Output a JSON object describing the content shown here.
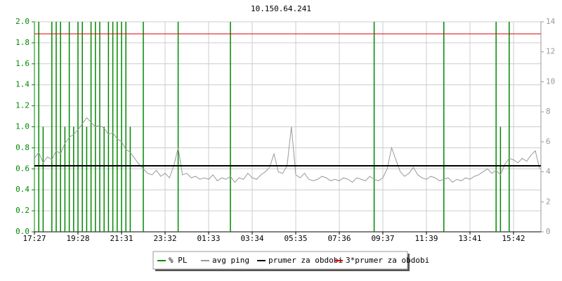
{
  "chart_data": {
    "type": "line",
    "title": "10.150.64.241",
    "categories": [
      "17:27",
      null,
      null,
      null,
      null,
      null,
      null,
      null,
      null,
      null,
      "19:28",
      null,
      null,
      null,
      null,
      null,
      null,
      null,
      null,
      null,
      "21:31",
      null,
      null,
      null,
      null,
      null,
      null,
      null,
      null,
      null,
      "23:32",
      null,
      null,
      null,
      null,
      null,
      null,
      null,
      null,
      null,
      "01:33",
      null,
      null,
      null,
      null,
      null,
      null,
      null,
      null,
      null,
      "03:34",
      null,
      null,
      null,
      null,
      null,
      null,
      null,
      null,
      null,
      "05:35",
      null,
      null,
      null,
      null,
      null,
      null,
      null,
      null,
      null,
      "07:36",
      null,
      null,
      null,
      null,
      null,
      null,
      null,
      null,
      null,
      "09:37",
      null,
      null,
      null,
      null,
      null,
      null,
      null,
      null,
      null,
      "11:39",
      null,
      null,
      null,
      null,
      null,
      null,
      null,
      null,
      null,
      "13:41",
      null,
      null,
      null,
      null,
      null,
      null,
      null,
      null,
      null,
      "15:42",
      null,
      null,
      null,
      null,
      null,
      null
    ],
    "ylim": [
      0,
      2
    ],
    "yticks": [
      {
        "value": 0,
        "label": "0.0"
      },
      0.2,
      0.4,
      0.6,
      0.8,
      {
        "value": 1,
        "label": "1.0"
      },
      1.2,
      1.4,
      1.6,
      1.8,
      {
        "value": 2,
        "label": "2.0"
      }
    ],
    "y2lim": [
      0,
      14
    ],
    "y2ticks": [
      0,
      2,
      4,
      6,
      8,
      10,
      12,
      14
    ],
    "grid": true,
    "series": [
      {
        "name": "% PL",
        "color": "#008800",
        "style": "spikes",
        "values": [
          0,
          2,
          1,
          0,
          2,
          2,
          2,
          1,
          2,
          1,
          2,
          2,
          1,
          2,
          2,
          2,
          1,
          2,
          2,
          2,
          2,
          2,
          1,
          0,
          0,
          2,
          0,
          0,
          0,
          0,
          0,
          0,
          0,
          2,
          0,
          0,
          0,
          0,
          0,
          0,
          0,
          0,
          0,
          0,
          0,
          2,
          0,
          0,
          0,
          0,
          0,
          0,
          0,
          0,
          0,
          0,
          0,
          0,
          0,
          0,
          0,
          0,
          0,
          0,
          0,
          0,
          0,
          0,
          0,
          0,
          0,
          0,
          0,
          0,
          0,
          0,
          0,
          0,
          2,
          0,
          0,
          0,
          0,
          0,
          0,
          0,
          0,
          0,
          0,
          0,
          0,
          0,
          0,
          0,
          2,
          0,
          0,
          0,
          0,
          0,
          0,
          0,
          0,
          0,
          0,
          0,
          2,
          1,
          0,
          2,
          0,
          0,
          0,
          0,
          0,
          0,
          0
        ]
      },
      {
        "name": "avg ping",
        "color": "#999999",
        "axis": "y2",
        "values": [
          4.9,
          5.3,
          4.6,
          5.0,
          4.8,
          5.4,
          5.2,
          5.9,
          6.3,
          6.5,
          6.8,
          7.2,
          7.6,
          7.3,
          7.0,
          7.1,
          6.9,
          6.5,
          6.6,
          6.2,
          6.0,
          5.5,
          5.3,
          4.9,
          4.5,
          4.2,
          3.9,
          3.8,
          4.1,
          3.7,
          3.9,
          3.6,
          4.4,
          5.6,
          3.8,
          3.9,
          3.6,
          3.7,
          3.5,
          3.6,
          3.5,
          3.8,
          3.4,
          3.6,
          3.5,
          3.7,
          3.3,
          3.6,
          3.5,
          3.9,
          3.6,
          3.5,
          3.8,
          4.0,
          4.3,
          5.2,
          4.0,
          3.9,
          4.4,
          7.0,
          3.8,
          3.6,
          3.9,
          3.5,
          3.4,
          3.5,
          3.7,
          3.6,
          3.4,
          3.5,
          3.4,
          3.6,
          3.5,
          3.3,
          3.6,
          3.5,
          3.4,
          3.7,
          3.5,
          3.4,
          3.6,
          4.2,
          5.6,
          4.8,
          4.0,
          3.7,
          3.9,
          4.3,
          3.8,
          3.6,
          3.5,
          3.7,
          3.6,
          3.4,
          3.5,
          3.6,
          3.3,
          3.5,
          3.4,
          3.6,
          3.5,
          3.7,
          3.8,
          4.0,
          4.2,
          3.9,
          4.1,
          3.8,
          4.5,
          4.9,
          4.8,
          4.6,
          4.9,
          4.7,
          5.1,
          5.4,
          4.2
        ]
      },
      {
        "name": "prumer za obdobi",
        "color": "#000000",
        "axis": "y2",
        "value": 4.4
      },
      {
        "name": "3*prumer za obdobi",
        "color": "#dd0000",
        "axis": "y2",
        "value": 13.2
      }
    ]
  }
}
